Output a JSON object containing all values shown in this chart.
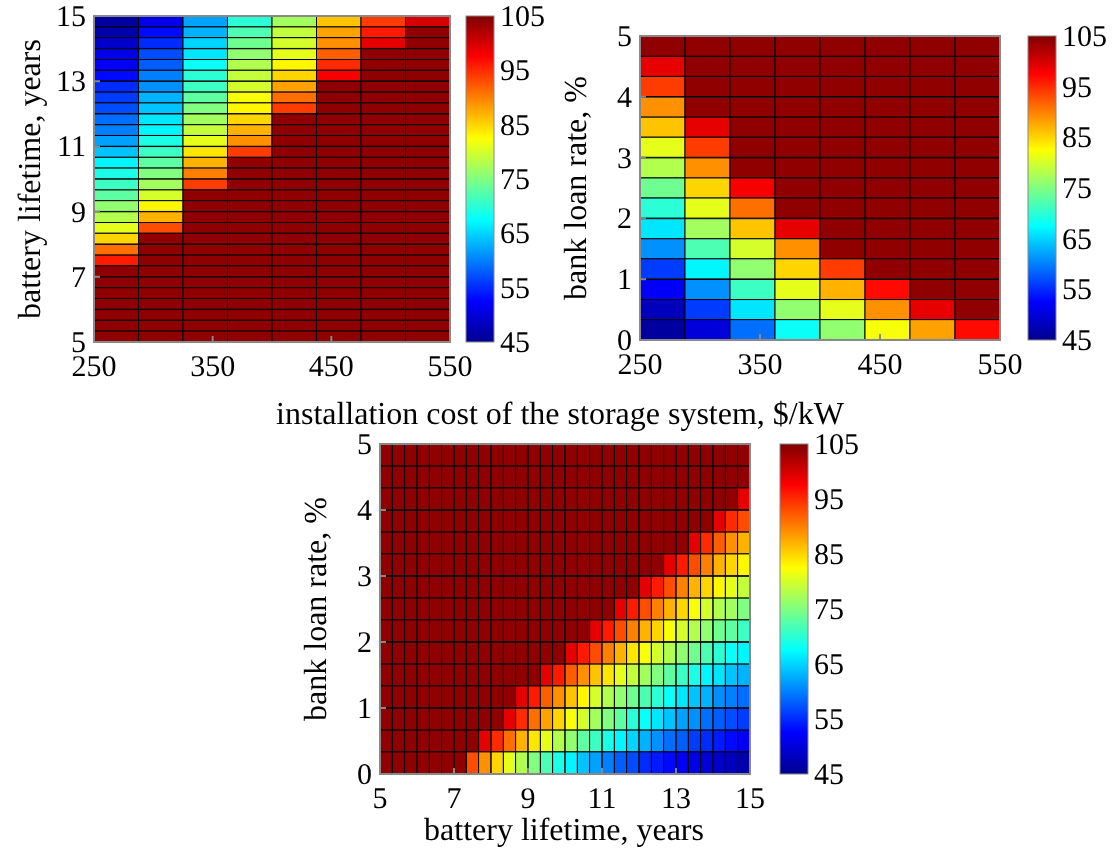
{
  "chart_data": [
    {
      "type": "heatmap",
      "xlabel": "installation cost of the storage system, $/kW",
      "ylabel": "battery lifetime, years",
      "x": [
        268.75,
        306.25,
        343.75,
        381.25,
        418.75,
        456.25,
        493.75,
        531.25
      ],
      "y": [
        14.83,
        14.5,
        14.17,
        13.83,
        13.5,
        13.17,
        12.83,
        12.5,
        12.17,
        11.83,
        11.5,
        11.17,
        10.83,
        10.5,
        10.17,
        9.83,
        9.5,
        9.17,
        8.83,
        8.5,
        8.17,
        7.83,
        7.5,
        7.17,
        6.83,
        6.5,
        6.17,
        5.83,
        5.5,
        5.17
      ],
      "xlim": [
        250,
        550
      ],
      "xticks": [
        250,
        350,
        450,
        550
      ],
      "ylim": [
        5,
        15
      ],
      "yticks": [
        5,
        7,
        9,
        11,
        13,
        15
      ],
      "clim": [
        45,
        105
      ],
      "cticks": [
        45,
        55,
        65,
        75,
        85,
        95,
        105
      ],
      "cells": [
        [
          46,
          51,
          62,
          70,
          77,
          86,
          94,
          100
        ],
        [
          47,
          53,
          63,
          72,
          79,
          88,
          96,
          104
        ],
        [
          49,
          55,
          65,
          74,
          80,
          89,
          99,
          104
        ],
        [
          51,
          57,
          66,
          76,
          81,
          92,
          104,
          104
        ],
        [
          52,
          58,
          68,
          78,
          83,
          95,
          104,
          104
        ],
        [
          53,
          60,
          70,
          79,
          85,
          98,
          104,
          104
        ],
        [
          55,
          61,
          71,
          80,
          88,
          104,
          104,
          104
        ],
        [
          56,
          63,
          73,
          82,
          91,
          104,
          104,
          104
        ],
        [
          57,
          64,
          75,
          83,
          94,
          104,
          104,
          104
        ],
        [
          59,
          66,
          77,
          85,
          104,
          104,
          104,
          104
        ],
        [
          60,
          67,
          79,
          87,
          104,
          104,
          104,
          104
        ],
        [
          62,
          69,
          81,
          89,
          104,
          104,
          104,
          104
        ],
        [
          64,
          71,
          84,
          94,
          104,
          104,
          104,
          104
        ],
        [
          67,
          73,
          87,
          104,
          104,
          104,
          104,
          104
        ],
        [
          69,
          75,
          90,
          104,
          104,
          104,
          104,
          104
        ],
        [
          71,
          77,
          94,
          104,
          104,
          104,
          104,
          104
        ],
        [
          73,
          80,
          104,
          104,
          104,
          104,
          104,
          104
        ],
        [
          76,
          83,
          104,
          104,
          104,
          104,
          104,
          104
        ],
        [
          78,
          87,
          104,
          104,
          104,
          104,
          104,
          104
        ],
        [
          81,
          93,
          104,
          104,
          104,
          104,
          104,
          104
        ],
        [
          85,
          104,
          104,
          104,
          104,
          104,
          104,
          104
        ],
        [
          91,
          104,
          104,
          104,
          104,
          104,
          104,
          104
        ],
        [
          96,
          104,
          104,
          104,
          104,
          104,
          104,
          104
        ],
        [
          104,
          104,
          104,
          104,
          104,
          104,
          104,
          104
        ],
        [
          104,
          104,
          104,
          104,
          104,
          104,
          104,
          104
        ],
        [
          104,
          104,
          104,
          104,
          104,
          104,
          104,
          104
        ],
        [
          104,
          104,
          104,
          104,
          104,
          104,
          104,
          104
        ],
        [
          104,
          104,
          104,
          104,
          104,
          104,
          104,
          104
        ],
        [
          104,
          104,
          104,
          104,
          104,
          104,
          104,
          104
        ],
        [
          104,
          104,
          104,
          104,
          104,
          104,
          104,
          104
        ]
      ]
    },
    {
      "type": "heatmap",
      "ylabel": "bank loan rate, %",
      "x": [
        268.75,
        306.25,
        343.75,
        381.25,
        418.75,
        456.25,
        493.75,
        531.25
      ],
      "y": [
        4.83,
        4.5,
        4.17,
        3.83,
        3.5,
        3.17,
        2.83,
        2.5,
        2.17,
        1.83,
        1.5,
        1.17,
        0.83,
        0.5,
        0.17
      ],
      "xlim": [
        250,
        550
      ],
      "xticks": [
        250,
        350,
        450,
        550
      ],
      "ylim": [
        0,
        5
      ],
      "yticks": [
        0,
        1,
        2,
        3,
        4,
        5
      ],
      "clim": [
        45,
        105
      ],
      "cticks": [
        45,
        55,
        65,
        75,
        85,
        95,
        105
      ],
      "cells": [
        [
          104,
          104,
          104,
          104,
          104,
          104,
          104,
          104
        ],
        [
          99,
          104,
          104,
          104,
          104,
          104,
          104,
          104
        ],
        [
          94,
          104,
          104,
          104,
          104,
          104,
          104,
          104
        ],
        [
          89,
          104,
          104,
          104,
          104,
          104,
          104,
          104
        ],
        [
          86,
          99,
          104,
          104,
          104,
          104,
          104,
          104
        ],
        [
          81,
          94,
          104,
          104,
          104,
          104,
          104,
          104
        ],
        [
          78,
          89,
          104,
          104,
          104,
          104,
          104,
          104
        ],
        [
          74,
          85,
          98,
          104,
          104,
          104,
          104,
          104
        ],
        [
          70,
          81,
          91,
          104,
          104,
          104,
          104,
          104
        ],
        [
          66,
          77,
          86,
          99,
          104,
          104,
          104,
          104
        ],
        [
          61,
          72,
          80,
          89,
          104,
          104,
          104,
          104
        ],
        [
          56,
          67,
          76,
          85,
          94,
          104,
          104,
          104
        ],
        [
          52,
          61,
          71,
          81,
          87,
          97,
          104,
          104
        ],
        [
          48,
          56,
          66,
          76,
          81,
          89,
          99,
          104
        ],
        [
          46,
          50,
          59,
          68,
          76,
          82,
          88,
          97
        ]
      ]
    },
    {
      "type": "heatmap",
      "xlabel": "battery lifetime, years",
      "ylabel": "bank loan rate, %",
      "x": [
        5.17,
        5.5,
        5.83,
        6.17,
        6.5,
        6.83,
        7.17,
        7.5,
        7.83,
        8.17,
        8.5,
        8.83,
        9.17,
        9.5,
        9.83,
        10.17,
        10.5,
        10.83,
        11.17,
        11.5,
        11.83,
        12.17,
        12.5,
        12.83,
        13.17,
        13.5,
        13.83,
        14.17,
        14.5,
        14.83
      ],
      "y": [
        4.83,
        4.5,
        4.17,
        3.83,
        3.5,
        3.17,
        2.83,
        2.5,
        2.17,
        1.83,
        1.5,
        1.17,
        0.83,
        0.5,
        0.17
      ],
      "xlim": [
        5,
        15
      ],
      "xticks": [
        5,
        7,
        9,
        11,
        13,
        15
      ],
      "ylim": [
        0,
        5
      ],
      "yticks": [
        0,
        1,
        2,
        3,
        4,
        5
      ],
      "clim": [
        45,
        105
      ],
      "cticks": [
        45,
        55,
        65,
        75,
        85,
        95,
        105
      ],
      "cells": [
        [
          104,
          104,
          104,
          104,
          104,
          104,
          104,
          104,
          104,
          104,
          104,
          104,
          104,
          104,
          104,
          104,
          104,
          104,
          104,
          104,
          104,
          104,
          104,
          104,
          104,
          104,
          104,
          104,
          104,
          104
        ],
        [
          104,
          104,
          104,
          104,
          104,
          104,
          104,
          104,
          104,
          104,
          104,
          104,
          104,
          104,
          104,
          104,
          104,
          104,
          104,
          104,
          104,
          104,
          104,
          104,
          104,
          104,
          104,
          104,
          104,
          104
        ],
        [
          104,
          104,
          104,
          104,
          104,
          104,
          104,
          104,
          104,
          104,
          104,
          104,
          104,
          104,
          104,
          104,
          104,
          104,
          104,
          104,
          104,
          104,
          104,
          104,
          104,
          104,
          104,
          104,
          104,
          99
        ],
        [
          104,
          104,
          104,
          104,
          104,
          104,
          104,
          104,
          104,
          104,
          104,
          104,
          104,
          104,
          104,
          104,
          104,
          104,
          104,
          104,
          104,
          104,
          104,
          104,
          104,
          104,
          104,
          99,
          95,
          93
        ],
        [
          104,
          104,
          104,
          104,
          104,
          104,
          104,
          104,
          104,
          104,
          104,
          104,
          104,
          104,
          104,
          104,
          104,
          104,
          104,
          104,
          104,
          104,
          104,
          104,
          104,
          99,
          95,
          92,
          89,
          87
        ],
        [
          104,
          104,
          104,
          104,
          104,
          104,
          104,
          104,
          104,
          104,
          104,
          104,
          104,
          104,
          104,
          104,
          104,
          104,
          104,
          104,
          104,
          104,
          104,
          99,
          96,
          93,
          90,
          87,
          85,
          83
        ],
        [
          104,
          104,
          104,
          104,
          104,
          104,
          104,
          104,
          104,
          104,
          104,
          104,
          104,
          104,
          104,
          104,
          104,
          104,
          104,
          104,
          104,
          99,
          96,
          93,
          90,
          87,
          85,
          83,
          81,
          79
        ],
        [
          104,
          104,
          104,
          104,
          104,
          104,
          104,
          104,
          104,
          104,
          104,
          104,
          104,
          104,
          104,
          104,
          104,
          104,
          104,
          99,
          96,
          93,
          90,
          87,
          85,
          82,
          80,
          78,
          77,
          75
        ],
        [
          104,
          104,
          104,
          104,
          104,
          104,
          104,
          104,
          104,
          104,
          104,
          104,
          104,
          104,
          104,
          104,
          104,
          99,
          96,
          93,
          90,
          87,
          85,
          82,
          80,
          78,
          76,
          74,
          73,
          71
        ],
        [
          104,
          104,
          104,
          104,
          104,
          104,
          104,
          104,
          104,
          104,
          104,
          104,
          104,
          104,
          104,
          99,
          96,
          93,
          90,
          87,
          84,
          82,
          80,
          78,
          76,
          74,
          72,
          70,
          68,
          67
        ],
        [
          104,
          104,
          104,
          104,
          104,
          104,
          104,
          104,
          104,
          104,
          104,
          104,
          104,
          99,
          96,
          92,
          89,
          86,
          84,
          81,
          79,
          77,
          75,
          73,
          71,
          69,
          67,
          66,
          64,
          63
        ],
        [
          104,
          104,
          104,
          104,
          104,
          104,
          104,
          104,
          104,
          104,
          104,
          99,
          96,
          92,
          89,
          86,
          83,
          80,
          78,
          76,
          74,
          72,
          70,
          68,
          66,
          64,
          63,
          61,
          60,
          59
        ],
        [
          104,
          104,
          104,
          104,
          104,
          104,
          104,
          104,
          104,
          104,
          99,
          95,
          91,
          88,
          85,
          82,
          80,
          77,
          75,
          73,
          70,
          68,
          66,
          64,
          62,
          61,
          59,
          58,
          57,
          56
        ],
        [
          104,
          104,
          104,
          104,
          104,
          104,
          104,
          104,
          99,
          95,
          91,
          87,
          84,
          81,
          78,
          76,
          73,
          71,
          69,
          67,
          65,
          63,
          61,
          59,
          58,
          56,
          55,
          54,
          53,
          52
        ],
        [
          104,
          104,
          104,
          104,
          104,
          104,
          104,
          93,
          89,
          85,
          81,
          78,
          75,
          72,
          69,
          67,
          64,
          62,
          60,
          58,
          57,
          55,
          54,
          53,
          52,
          51,
          50,
          49,
          48,
          47
        ]
      ]
    }
  ]
}
